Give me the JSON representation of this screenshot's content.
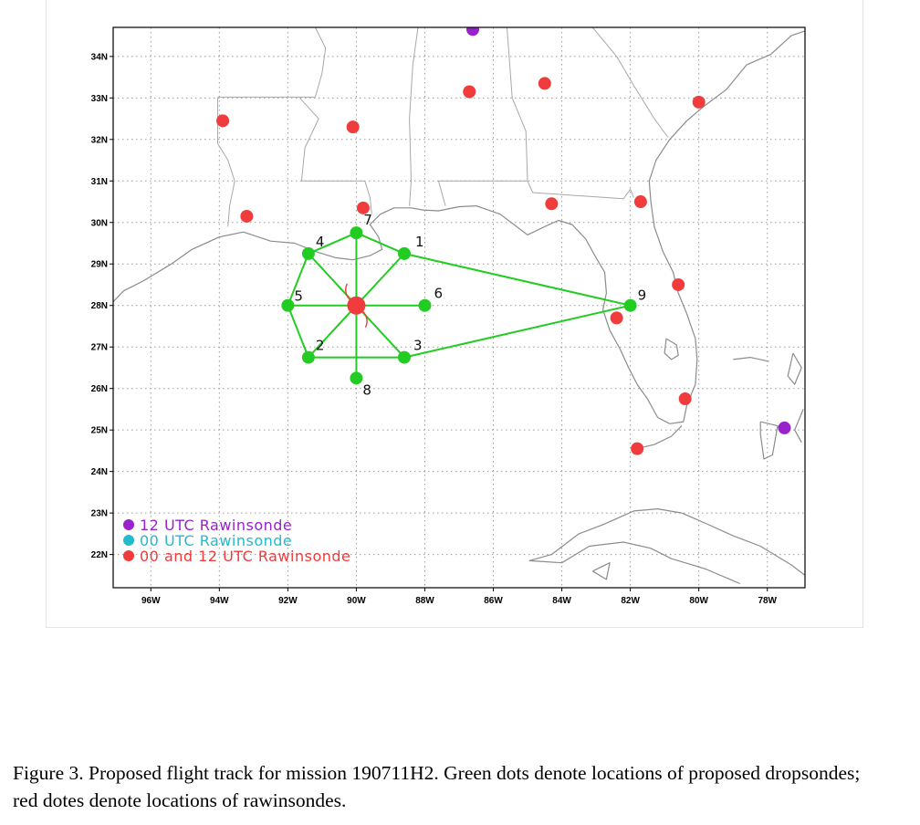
{
  "map": {
    "lat_labels": [
      "34N",
      "33N",
      "32N",
      "31N",
      "30N",
      "29N",
      "28N",
      "27N",
      "26N",
      "25N",
      "24N",
      "23N",
      "22N"
    ],
    "lat_values": [
      34,
      33,
      32,
      31,
      30,
      29,
      28,
      27,
      26,
      25,
      24,
      23,
      22
    ],
    "lon_labels": [
      "96W",
      "94W",
      "92W",
      "90W",
      "88W",
      "86W",
      "84W",
      "82W",
      "80W",
      "78W"
    ],
    "lon_values": [
      -96,
      -94,
      -92,
      -90,
      -88,
      -86,
      -84,
      -82,
      -80,
      -78
    ],
    "lon_range": [
      -97.1,
      -76.9
    ],
    "lat_range": [
      21.2,
      34.7
    ],
    "colors": {
      "track": "#22cc22",
      "dropsonde": "#22cc22",
      "rawinsonde_both": "#f03c3c",
      "rawinsonde_12": "#9922cc",
      "rawinsonde_00": "#22bbcc",
      "coast": "#8c8c8c",
      "grid": "#9a9a9a"
    },
    "center": {
      "lon": -90.0,
      "lat": 28.0
    },
    "dropsondes": [
      {
        "id": "1",
        "lon": -88.6,
        "lat": 29.25
      },
      {
        "id": "2",
        "lon": -91.4,
        "lat": 26.75
      },
      {
        "id": "3",
        "lon": -88.6,
        "lat": 26.75
      },
      {
        "id": "4",
        "lon": -91.4,
        "lat": 29.25
      },
      {
        "id": "5",
        "lon": -92.0,
        "lat": 28.0
      },
      {
        "id": "6",
        "lon": -88.0,
        "lat": 28.0
      },
      {
        "id": "7",
        "lon": -90.0,
        "lat": 29.75
      },
      {
        "id": "8",
        "lon": -90.0,
        "lat": 26.25
      },
      {
        "id": "9",
        "lon": -82.0,
        "lat": 28.0
      }
    ],
    "track_order": [
      "5",
      "4",
      "7",
      "1",
      "9",
      "3",
      "2",
      "5"
    ],
    "rawinsondes_both": [
      {
        "lon": -93.9,
        "lat": 32.45
      },
      {
        "lon": -90.1,
        "lat": 32.3
      },
      {
        "lon": -86.7,
        "lat": 33.15
      },
      {
        "lon": -84.5,
        "lat": 33.35
      },
      {
        "lon": -80.0,
        "lat": 32.9
      },
      {
        "lon": -93.2,
        "lat": 30.15
      },
      {
        "lon": -89.8,
        "lat": 30.35
      },
      {
        "lon": -84.3,
        "lat": 30.45
      },
      {
        "lon": -81.7,
        "lat": 30.5
      },
      {
        "lon": -80.6,
        "lat": 28.5
      },
      {
        "lon": -82.4,
        "lat": 27.7
      },
      {
        "lon": -80.4,
        "lat": 25.75
      },
      {
        "lon": -81.8,
        "lat": 24.55
      }
    ],
    "rawinsondes_12": [
      {
        "lon": -86.6,
        "lat": 34.65
      },
      {
        "lon": -77.5,
        "lat": 25.05
      }
    ],
    "legend": [
      {
        "label": "12 UTC Rawinsonde",
        "color": "#9922cc"
      },
      {
        "label": "00 UTC Rawinsonde",
        "color": "#22bbcc"
      },
      {
        "label": "00 and 12 UTC Rawinsonde",
        "color": "#f03c3c"
      }
    ]
  },
  "caption": {
    "text": "Figure 3.  Proposed flight track for mission 190711H2.  Green dots denote locations of proposed dropsondes; red dotes denote locations of rawinsondes."
  }
}
